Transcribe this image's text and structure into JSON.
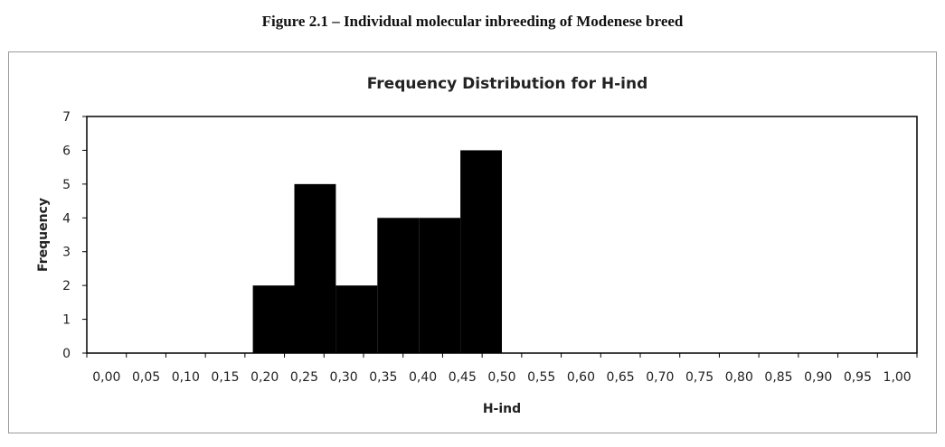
{
  "figure_caption": "Figure 2.1 – Individual molecular inbreeding of Modenese breed",
  "chart_data": {
    "type": "bar",
    "title": "Frequency Distribution for H-ind",
    "xlabel": "H-ind",
    "ylabel": "Frequency",
    "x_tick_labels": [
      "0,00",
      "0,05",
      "0,10",
      "0,15",
      "0,20",
      "0,25",
      "0,30",
      "0,35",
      "0,40",
      "0,45",
      "0,50",
      "0,55",
      "0,60",
      "0,65",
      "0,70",
      "0,75",
      "0,80",
      "0,85",
      "0,90",
      "0,95",
      "1,00"
    ],
    "y_tick_labels": [
      "0",
      "1",
      "2",
      "3",
      "4",
      "5",
      "6",
      "7"
    ],
    "ylim": [
      0,
      7
    ],
    "xlim": [
      0,
      1
    ],
    "bin_width": 0.05,
    "bins": [
      {
        "x0": 0.2,
        "x1": 0.25,
        "value": 2
      },
      {
        "x0": 0.25,
        "x1": 0.3,
        "value": 5
      },
      {
        "x0": 0.3,
        "x1": 0.35,
        "value": 2
      },
      {
        "x0": 0.35,
        "x1": 0.4,
        "value": 4
      },
      {
        "x0": 0.4,
        "x1": 0.45,
        "value": 4
      },
      {
        "x0": 0.45,
        "x1": 0.5,
        "value": 6
      }
    ],
    "bar_color": "#000000",
    "grid": false,
    "legend": "none"
  }
}
